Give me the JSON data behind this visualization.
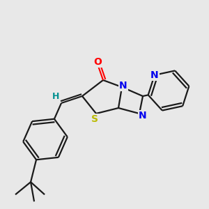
{
  "background_color": "#e8e8e8",
  "fig_width": 3.0,
  "fig_height": 3.0,
  "dpi": 100,
  "colors": {
    "bond": "#1a1a1a",
    "blue": "#0000ee",
    "red": "#ff0000",
    "teal": "#009090",
    "yellow": "#bbbb00"
  },
  "atoms": {
    "O": {
      "color": "#ff0000"
    },
    "N": {
      "color": "#0000ee"
    },
    "S": {
      "color": "#bbbb00"
    },
    "H": {
      "color": "#009090"
    },
    "C": {
      "color": "#1a1a1a"
    }
  }
}
